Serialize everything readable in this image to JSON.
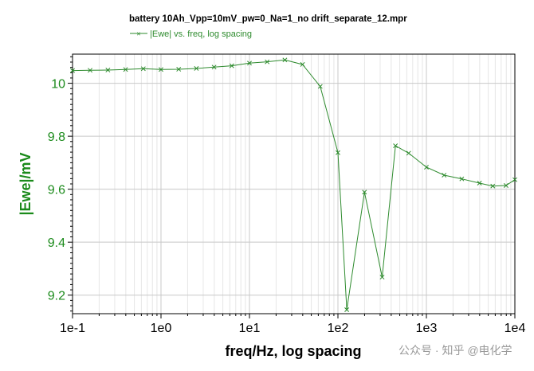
{
  "chart_data": {
    "type": "line",
    "title": "battery 10Ah_Vpp=10mV_pw=0_Na=1_no drift_separate_12.mpr",
    "legend": "|Ewe| vs. freq, log spacing",
    "legend_position": "top-left",
    "xlabel": "freq/Hz, log spacing",
    "ylabel": "|Ewe|/mV",
    "x_scale": "log",
    "xlim": [
      0.1,
      10000
    ],
    "ylim": [
      9.13,
      10.11
    ],
    "x_ticks": [
      0.1,
      1,
      10,
      100,
      1000,
      10000
    ],
    "x_tick_labels": [
      "1e-1",
      "1e0",
      "1e1",
      "1e2",
      "1e3",
      "1e4"
    ],
    "y_ticks": [
      9.2,
      9.4,
      9.6,
      9.8,
      10
    ],
    "y_tick_labels": [
      "9.2",
      "9.4",
      "9.6",
      "9.8",
      "10"
    ],
    "grid": true,
    "series_color": "#2e8b2e",
    "series": [
      {
        "name": "|Ewe| vs. freq, log spacing",
        "x": [
          0.1,
          0.158,
          0.251,
          0.398,
          0.631,
          1.0,
          1.585,
          2.512,
          3.981,
          6.31,
          10.0,
          15.85,
          25.12,
          39.81,
          63.1,
          100,
          125.9,
          199.5,
          316.2,
          446.7,
          631,
          1000,
          1585,
          2512,
          3981,
          5623,
          7943,
          10000
        ],
        "y": [
          10.048,
          10.049,
          10.05,
          10.052,
          10.055,
          10.052,
          10.053,
          10.056,
          10.061,
          10.066,
          10.076,
          10.081,
          10.088,
          10.071,
          9.988,
          9.738,
          9.145,
          9.589,
          9.268,
          9.764,
          9.736,
          9.683,
          9.653,
          9.639,
          9.623,
          9.612,
          9.614,
          9.636
        ]
      }
    ]
  },
  "watermark": "公众号 · 知乎 @电化学"
}
